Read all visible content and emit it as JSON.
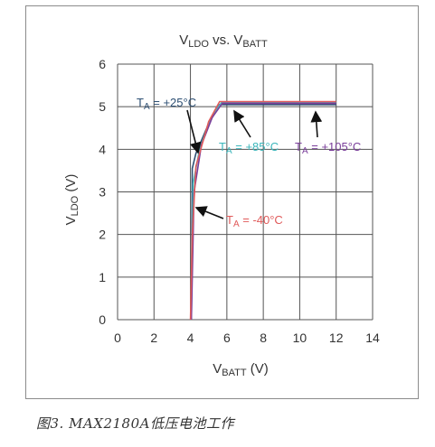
{
  "chart_data": {
    "type": "line",
    "title": {
      "main": "V",
      "sub": "LDO",
      "mid": " vs. V",
      "sub2": "BATT"
    },
    "xlabel": {
      "main": "V",
      "sub": "BATT",
      "rest": " (V)"
    },
    "ylabel": {
      "main": "V",
      "sub": "LDO",
      "rest": " (V)"
    },
    "xlim": [
      0,
      14
    ],
    "ylim": [
      0,
      6
    ],
    "xticks": [
      "0",
      "2",
      "4",
      "6",
      "8",
      "10",
      "12",
      "14"
    ],
    "yticks": [
      "0",
      "1",
      "2",
      "3",
      "4",
      "5",
      "6"
    ],
    "grid": true,
    "series": [
      {
        "key": "t25",
        "color": "#2d4f73",
        "points": [
          [
            4.05,
            0
          ],
          [
            4.1,
            3.55
          ],
          [
            4.3,
            3.9
          ],
          [
            5.0,
            4.6
          ],
          [
            5.6,
            5.05
          ],
          [
            12.0,
            5.05
          ]
        ]
      },
      {
        "key": "t85",
        "color": "#4bbfc3",
        "points": [
          [
            4.05,
            0
          ],
          [
            4.15,
            3.2
          ],
          [
            4.5,
            4.0
          ],
          [
            5.1,
            4.7
          ],
          [
            5.7,
            5.1
          ],
          [
            12.0,
            5.1
          ]
        ]
      },
      {
        "key": "t105",
        "color": "#7a3e9a",
        "points": [
          [
            4.05,
            0
          ],
          [
            4.2,
            3.0
          ],
          [
            4.6,
            4.1
          ],
          [
            5.2,
            4.75
          ],
          [
            5.75,
            5.08
          ],
          [
            12.0,
            5.08
          ]
        ]
      },
      {
        "key": "tm40",
        "color": "#e05a5a",
        "points": [
          [
            4.0,
            0
          ],
          [
            4.1,
            2.0
          ],
          [
            4.3,
            3.6
          ],
          [
            5.0,
            4.65
          ],
          [
            5.6,
            5.12
          ],
          [
            12.0,
            5.12
          ]
        ]
      }
    ],
    "annotations": [
      {
        "key": "t25",
        "color": "#2d4f73",
        "pre": "T",
        "sub": "A",
        "text": " = +25°C"
      },
      {
        "key": "t85",
        "color": "#3bb6bb",
        "pre": "T",
        "sub": "A",
        "text": " = +85°C"
      },
      {
        "key": "t105",
        "color": "#7a3e9a",
        "pre": "T",
        "sub": "A",
        "text": " = +105°C"
      },
      {
        "key": "tm40",
        "color": "#e05a5a",
        "pre": "T",
        "sub": "A",
        "text": " = -40°C"
      }
    ]
  },
  "caption": "图3. MAX2180A低压电池工作"
}
